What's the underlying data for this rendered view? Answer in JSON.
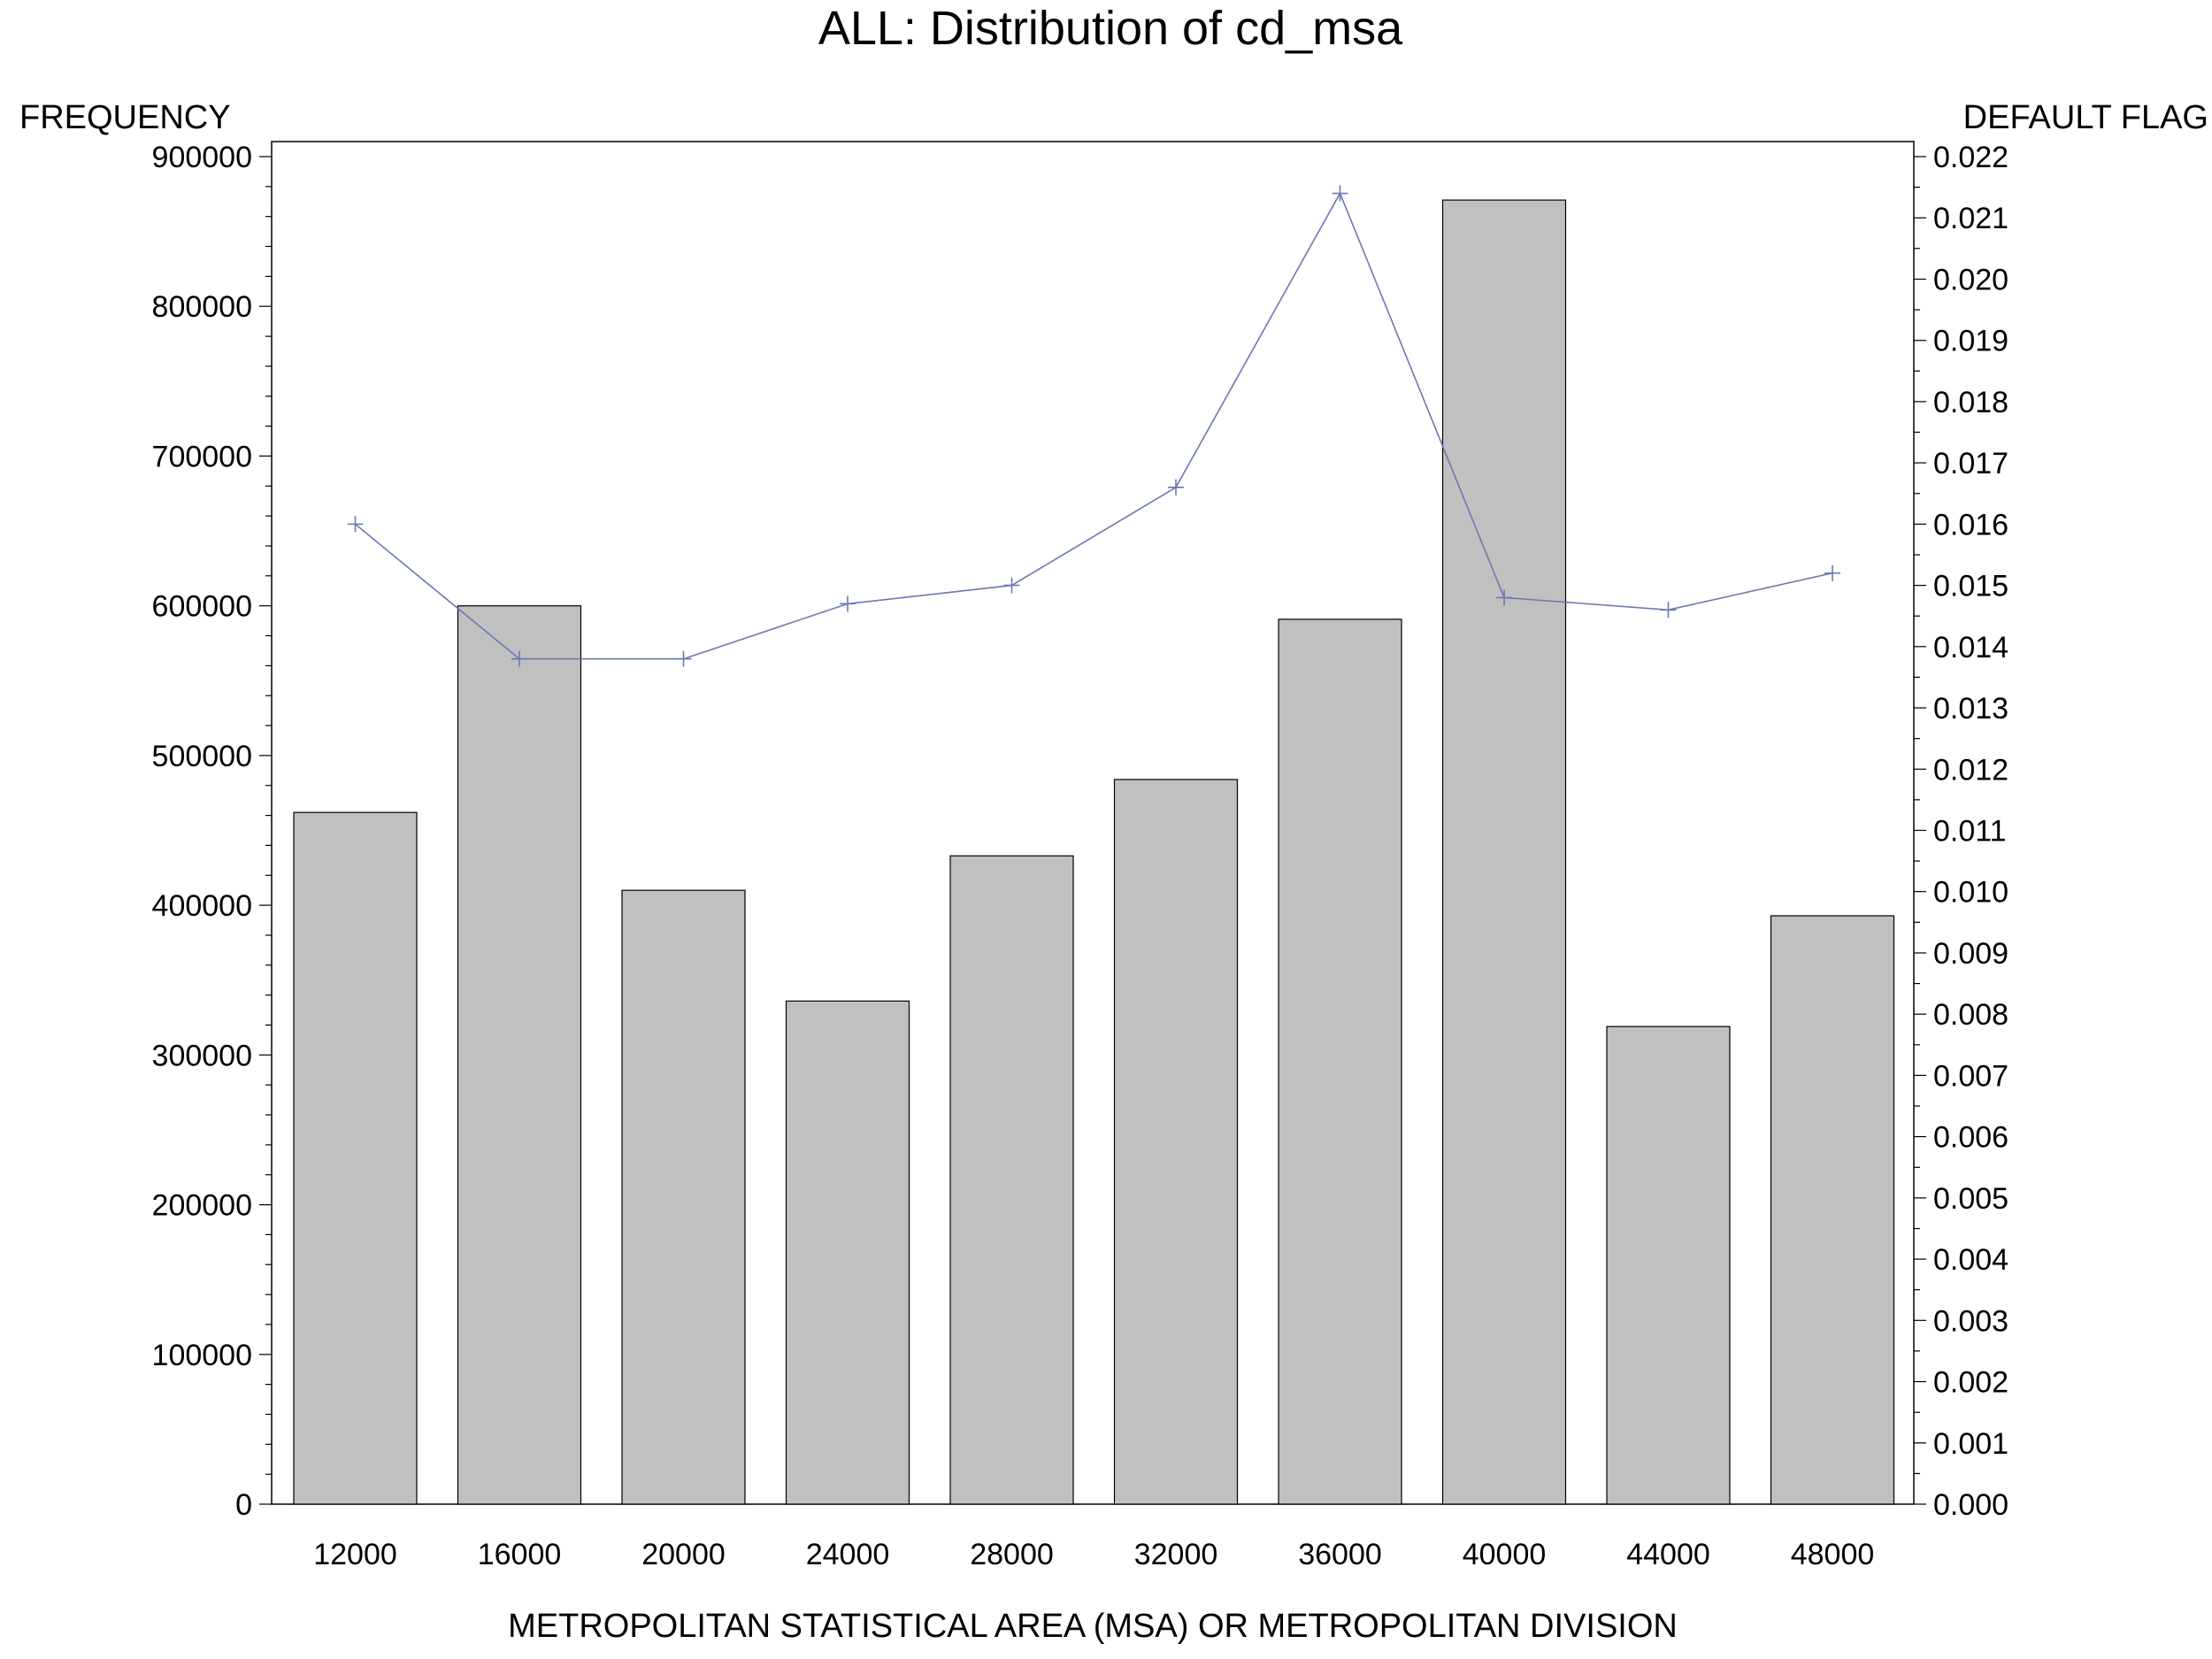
{
  "chart_data": {
    "type": "bar",
    "title": "ALL: Distribution of cd_msa",
    "xlabel": "METROPOLITAN STATISTICAL AREA (MSA) OR METROPOLITAN DIVISION",
    "ylabel": "FREQUENCY",
    "y2label": "DEFAULT FLAG",
    "categories": [
      "12000",
      "16000",
      "20000",
      "24000",
      "28000",
      "32000",
      "36000",
      "40000",
      "44000",
      "48000"
    ],
    "series": [
      {
        "type": "bar",
        "axis": "left",
        "values": [
          462000,
          600000,
          410000,
          336000,
          433000,
          484000,
          591000,
          871000,
          319000,
          393000
        ]
      },
      {
        "type": "line",
        "axis": "right",
        "values": [
          0.016,
          0.0138,
          0.0138,
          0.0147,
          0.015,
          0.0166,
          0.0214,
          0.0148,
          0.0146,
          0.0152
        ]
      }
    ],
    "ylim": [
      0,
      900000
    ],
    "y2lim": [
      0,
      0.022
    ],
    "yticks": [
      "0",
      "100000",
      "200000",
      "300000",
      "400000",
      "500000",
      "600000",
      "700000",
      "800000",
      "900000"
    ],
    "y2ticks": [
      "0.000",
      "0.001",
      "0.002",
      "0.003",
      "0.004",
      "0.005",
      "0.006",
      "0.007",
      "0.008",
      "0.009",
      "0.010",
      "0.011",
      "0.012",
      "0.013",
      "0.014",
      "0.015",
      "0.016",
      "0.017",
      "0.018",
      "0.019",
      "0.020",
      "0.021",
      "0.022"
    ],
    "grid": false,
    "legend": "none",
    "colors": {
      "bar_fill": "#c0c0c0",
      "bar_stroke": "#000000",
      "line": "#6b78b4"
    }
  }
}
